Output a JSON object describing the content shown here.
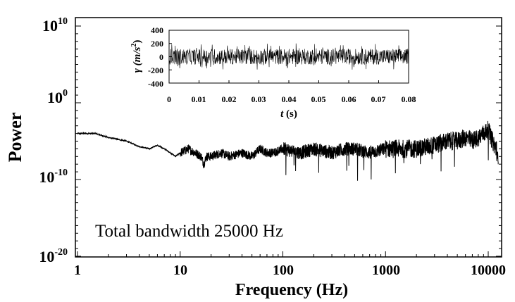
{
  "chart_data": [
    {
      "type": "line",
      "title": "",
      "xlabel": "Frequency (Hz)",
      "ylabel": "Power",
      "xscale": "log",
      "yscale": "log",
      "xlim": [
        1,
        12500
      ],
      "ylim": [
        1e-20,
        10000000000.0
      ],
      "xticks": [
        "1",
        "10",
        "100",
        "1000",
        "10000"
      ],
      "yticks": [
        {
          "base": "10",
          "exp": "10"
        },
        {
          "base": "10",
          "exp": "0"
        },
        {
          "base": "10",
          "exp": "-10"
        },
        {
          "base": "10",
          "exp": "-20"
        }
      ],
      "grid": false,
      "annotation": "Total bandwidth 25000 Hz",
      "series": [
        {
          "note_values": "power spectrum, approximate envelope read from plot",
          "x": [
            1,
            1.5,
            2,
            3,
            4,
            5,
            6,
            7,
            8,
            9,
            10,
            12,
            14,
            16,
            17,
            18,
            20,
            25,
            30,
            40,
            50,
            60,
            70,
            80,
            100,
            150,
            200,
            300,
            400,
            500,
            700,
            1000,
            1500,
            2000,
            3000,
            4000,
            5000,
            6000,
            7000,
            8000,
            9000,
            10000,
            11000,
            12000,
            12500
          ],
          "y": [
            0.0001,
            0.0001,
            3e-05,
            1e-05,
            2e-06,
            1e-06,
            3e-06,
            1e-06,
            3e-07,
            1e-07,
            3e-07,
            1e-06,
            3e-07,
            1e-07,
            1e-08,
            1e-07,
            1e-07,
            3e-07,
            1e-07,
            3e-07,
            1e-07,
            1e-06,
            3e-07,
            3e-07,
            1e-06,
            3e-07,
            1e-06,
            3e-07,
            1e-06,
            1e-06,
            3e-07,
            1e-06,
            1e-06,
            1e-06,
            3e-06,
            1e-05,
            1e-05,
            3e-05,
            1e-05,
            3e-05,
            0.0001,
            0.0003,
            1e-05,
            1e-06,
            1e-08
          ]
        }
      ]
    },
    {
      "type": "line",
      "title": "",
      "xlabel_parts": {
        "var": "t",
        "unit": "(s)"
      },
      "ylabel_parts": {
        "var": "γ",
        "unit_num": "(m/s",
        "unit_exp": "2",
        "unit_close": ")"
      },
      "xlim": [
        0,
        0.08
      ],
      "ylim": [
        -400,
        400
      ],
      "xticks": [
        "0",
        "0.01",
        "0.02",
        "0.03",
        "0.04",
        "0.05",
        "0.06",
        "0.07",
        "0.08"
      ],
      "yticks": [
        "400",
        "200",
        "0",
        "-200",
        "-400"
      ],
      "grid": false,
      "series": [
        {
          "note_values": "acceleration time signal, noise with amplitude roughly ±120 m/s² (peaks to ~±200)",
          "x_range": [
            0,
            0.08
          ],
          "typical_amplitude": 120,
          "peak_amplitude": 200
        }
      ]
    }
  ]
}
